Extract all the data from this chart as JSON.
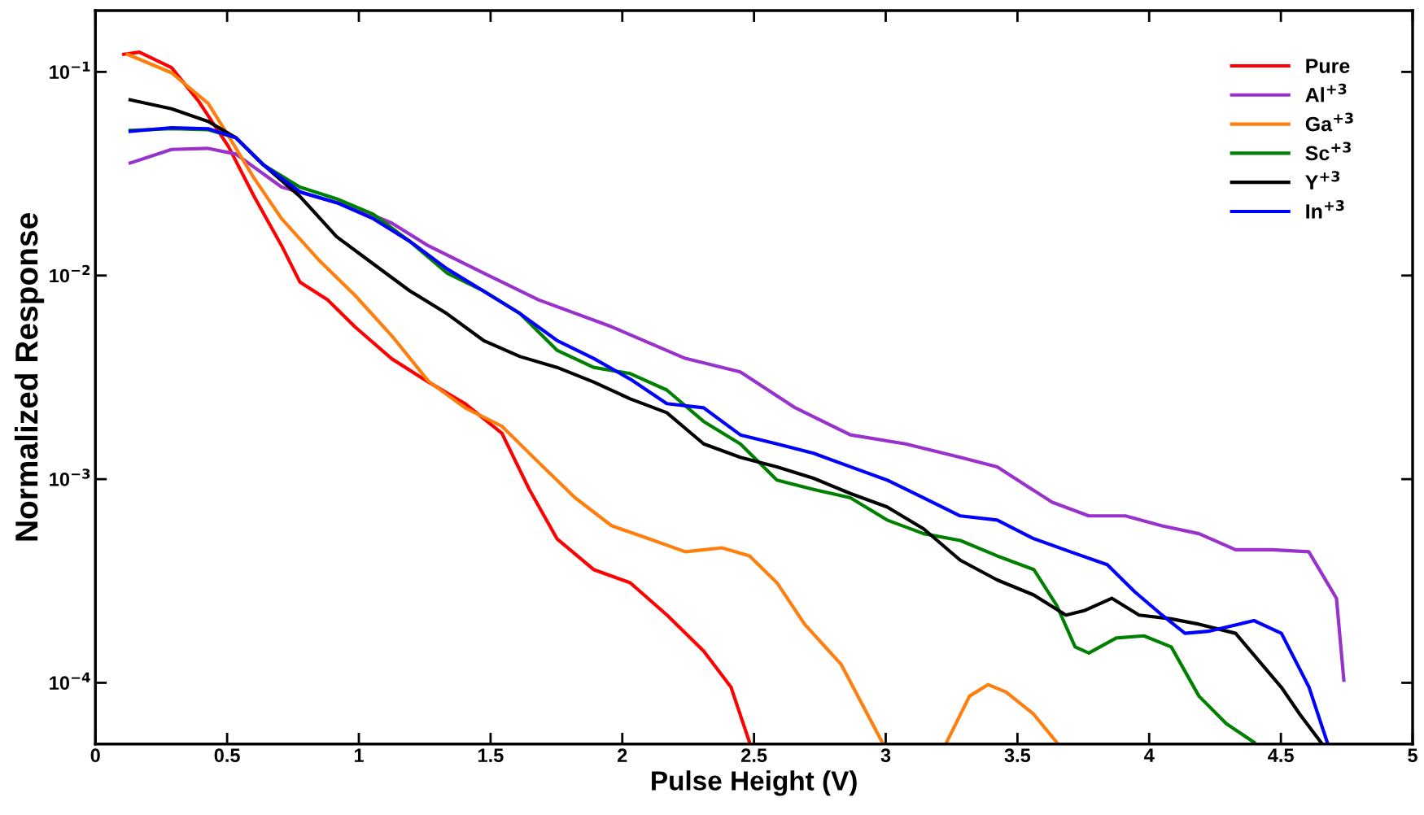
{
  "chart_data": {
    "type": "line",
    "xlabel": "Pulse Height (V)",
    "ylabel": "Normalized Response",
    "log": "y",
    "grid": false,
    "legend": "top right",
    "marker": "none",
    "line_style": "solid",
    "xlim": [
      0,
      5
    ],
    "xticks": [
      0,
      0.5,
      1,
      1.5,
      2,
      2.5,
      3,
      3.5,
      4,
      4.5,
      5
    ],
    "ylim": [
      5e-05,
      0.2
    ],
    "yticks": [
      {
        "value": 0.0001,
        "label": "10$^{−4}$"
      },
      {
        "value": 0.001,
        "label": "10$^{−3}$"
      },
      {
        "value": 0.01,
        "label": "10$^{−2}$"
      },
      {
        "value": 0.1,
        "label": "10$^{−1}$"
      }
    ],
    "series": [
      {
        "name": "Pure",
        "color": "#ff0000",
        "x": [
          0.108,
          0.167,
          0.289,
          0.393,
          0.505,
          0.602,
          0.707,
          0.776,
          0.881,
          0.985,
          1.125,
          1.264,
          1.403,
          1.543,
          1.647,
          1.752,
          1.891,
          2.03,
          2.17,
          2.309,
          2.413,
          2.483
        ],
        "values": [
          0.122,
          0.125,
          0.105,
          0.0714,
          0.043,
          0.0245,
          0.014,
          0.0093,
          0.0076,
          0.0056,
          0.0039,
          0.003,
          0.00235,
          0.00168,
          0.00089,
          0.00051,
          0.00036,
          0.00031,
          0.000215,
          0.000143,
          9.5e-05,
          5.1e-05
        ]
      },
      {
        "name": "Al$^{+3}$",
        "color": "#9932cc",
        "x": [
          0.132,
          0.289,
          0.428,
          0.533,
          0.707,
          0.916,
          0.985,
          1.125,
          1.264,
          1.473,
          1.682,
          1.96,
          2.239,
          2.448,
          2.657,
          2.866,
          3.075,
          3.283,
          3.423,
          3.632,
          3.771,
          3.91,
          4.049,
          4.189,
          4.328,
          4.467,
          4.606,
          4.711,
          4.739
        ],
        "values": [
          0.0357,
          0.0416,
          0.0421,
          0.0395,
          0.0272,
          0.0228,
          0.0215,
          0.0181,
          0.014,
          0.0103,
          0.0076,
          0.0056,
          0.00392,
          0.00336,
          0.00224,
          0.00165,
          0.00149,
          0.00128,
          0.00115,
          0.00077,
          0.00066,
          0.00066,
          0.00059,
          0.00054,
          0.00045,
          0.00045,
          0.00044,
          0.00026,
          0.000103
        ]
      },
      {
        "name": "Ga$^{+3}$",
        "color": "#ff7f0e",
        "x": [
          0.122,
          0.289,
          0.428,
          0.505,
          0.602,
          0.707,
          0.846,
          0.985,
          1.125,
          1.264,
          1.403,
          1.543,
          1.682,
          1.821,
          1.96,
          2.1,
          2.239,
          2.378,
          2.483,
          2.587,
          2.692,
          2.831,
          2.987,
          null,
          3.231,
          3.318,
          3.388,
          3.457,
          3.562,
          3.649
        ],
        "values": [
          0.122,
          0.099,
          0.07,
          0.0485,
          0.0301,
          0.019,
          0.012,
          0.008,
          0.00506,
          0.00303,
          0.00224,
          0.00182,
          0.00121,
          0.00081,
          0.00059,
          0.00051,
          0.00044,
          0.00046,
          0.00042,
          0.00031,
          0.000194,
          0.000123,
          5.1e-05,
          null,
          5.1e-05,
          8.6e-05,
          9.8e-05,
          9e-05,
          7e-05,
          5.1e-05
        ]
      },
      {
        "name": "Sc$^{+3}$",
        "color": "#008000",
        "x": [
          0.132,
          0.289,
          0.428,
          0.533,
          0.637,
          0.776,
          0.916,
          1.055,
          1.194,
          1.334,
          1.473,
          1.612,
          1.752,
          1.891,
          2.03,
          2.169,
          2.309,
          2.448,
          2.587,
          2.726,
          2.866,
          3.005,
          3.144,
          3.283,
          3.423,
          3.562,
          3.649,
          3.719,
          3.771,
          3.875,
          3.98,
          4.084,
          4.189,
          4.293,
          4.398
        ],
        "values": [
          0.0516,
          0.0526,
          0.052,
          0.0475,
          0.035,
          0.0272,
          0.0238,
          0.02,
          0.0147,
          0.0103,
          0.0084,
          0.0065,
          0.0043,
          0.00354,
          0.0033,
          0.00274,
          0.00192,
          0.00149,
          0.00099,
          0.00089,
          0.00081,
          0.00063,
          0.00054,
          0.0005,
          0.00042,
          0.00036,
          0.00024,
          0.00015,
          0.00014,
          0.000166,
          0.00017,
          0.00015,
          8.6e-05,
          6.3e-05,
          5.1e-05
        ]
      },
      {
        "name": "Y$^{+3}$",
        "color": "#000000",
        "x": [
          0.132,
          0.289,
          0.428,
          0.533,
          0.637,
          0.776,
          0.916,
          1.055,
          1.194,
          1.334,
          1.473,
          1.612,
          1.752,
          1.891,
          2.03,
          2.169,
          2.309,
          2.448,
          2.587,
          2.726,
          2.866,
          3.005,
          3.144,
          3.283,
          3.423,
          3.562,
          3.684,
          3.753,
          3.858,
          3.962,
          4.084,
          4.189,
          4.328,
          4.502,
          4.572,
          4.652
        ],
        "values": [
          0.0729,
          0.0659,
          0.0571,
          0.0475,
          0.035,
          0.0245,
          0.0155,
          0.0114,
          0.0084,
          0.0065,
          0.0048,
          0.004,
          0.00354,
          0.003,
          0.00248,
          0.00212,
          0.00149,
          0.00128,
          0.00115,
          0.00101,
          0.00085,
          0.00073,
          0.00057,
          0.0004,
          0.00032,
          0.00027,
          0.000215,
          0.000226,
          0.00026,
          0.000215,
          0.000206,
          0.000194,
          0.000175,
          9.5e-05,
          7e-05,
          5.1e-05
        ]
      },
      {
        "name": "In$^{+3}$",
        "color": "#0000ff",
        "x": [
          0.132,
          0.289,
          0.428,
          0.533,
          0.637,
          0.776,
          0.916,
          1.055,
          1.194,
          1.334,
          1.473,
          1.612,
          1.752,
          1.891,
          2.03,
          2.169,
          2.309,
          2.448,
          2.587,
          2.726,
          2.866,
          3.005,
          3.144,
          3.283,
          3.423,
          3.562,
          3.701,
          3.841,
          3.945,
          4.049,
          4.136,
          4.224,
          4.398,
          4.502,
          4.607,
          4.676
        ],
        "values": [
          0.051,
          0.0532,
          0.0526,
          0.0475,
          0.035,
          0.0258,
          0.0228,
          0.019,
          0.0147,
          0.0108,
          0.0084,
          0.0065,
          0.0048,
          0.00392,
          0.0031,
          0.00235,
          0.00224,
          0.00165,
          0.00149,
          0.00134,
          0.00115,
          0.00099,
          0.00081,
          0.00066,
          0.00063,
          0.00051,
          0.00044,
          0.00038,
          0.00028,
          0.000215,
          0.000175,
          0.000179,
          0.000202,
          0.000175,
          9.5e-05,
          5.1e-05
        ]
      }
    ]
  }
}
